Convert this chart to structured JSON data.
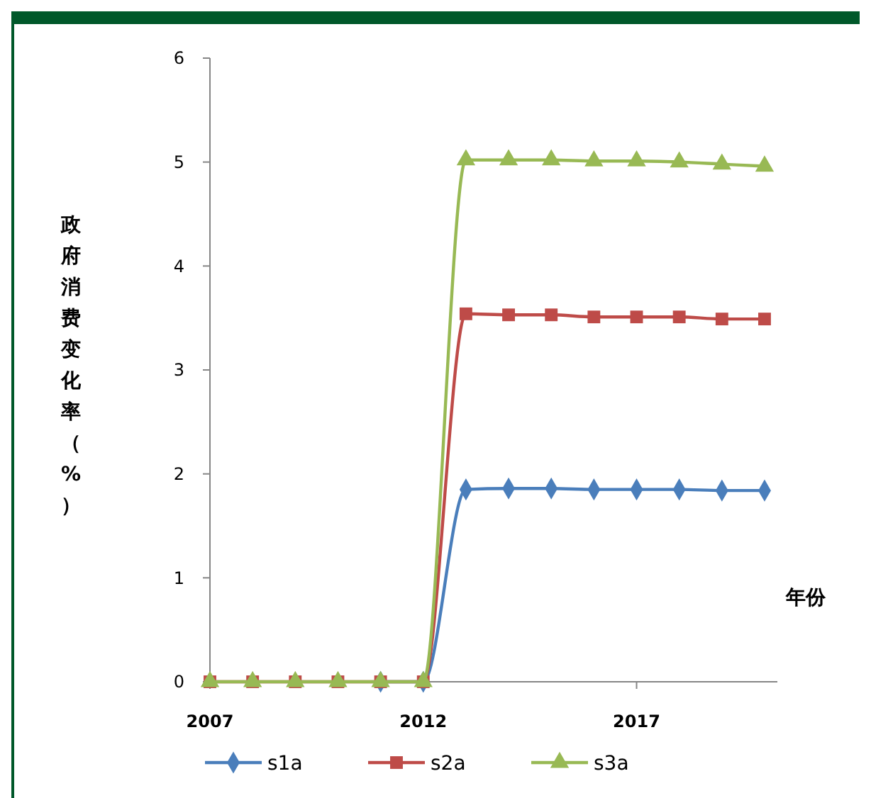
{
  "chart_data": {
    "type": "line",
    "ylabel": "政府消费变化率（%）",
    "xlabel": "年份",
    "x": [
      2007,
      2008,
      2009,
      2010,
      2011,
      2012,
      2013,
      2014,
      2015,
      2016,
      2017,
      2018,
      2019,
      2020
    ],
    "xlim": [
      2007,
      2020.3
    ],
    "xticks": [
      2007,
      2012,
      2017
    ],
    "ylim": [
      0,
      6
    ],
    "yticks": [
      0,
      1,
      2,
      3,
      4,
      5,
      6
    ],
    "grid": false,
    "legend": "bottom",
    "line_style": "solid",
    "series": [
      {
        "name": "s1a",
        "color": "#4a7ebb",
        "marker": "diamond",
        "values": [
          null,
          null,
          null,
          null,
          0,
          0,
          1.85,
          1.86,
          1.86,
          1.85,
          1.85,
          1.85,
          1.84,
          1.84
        ]
      },
      {
        "name": "s2a",
        "color": "#be4b48",
        "marker": "square",
        "values": [
          0,
          0,
          0,
          0,
          0,
          0,
          3.54,
          3.53,
          3.53,
          3.51,
          3.51,
          3.51,
          3.49,
          3.49
        ]
      },
      {
        "name": "s3a",
        "color": "#98b954",
        "marker": "triangle",
        "values": [
          0,
          0,
          0,
          0,
          0,
          0,
          5.02,
          5.02,
          5.02,
          5.01,
          5.01,
          5.0,
          4.98,
          4.96
        ]
      }
    ]
  }
}
